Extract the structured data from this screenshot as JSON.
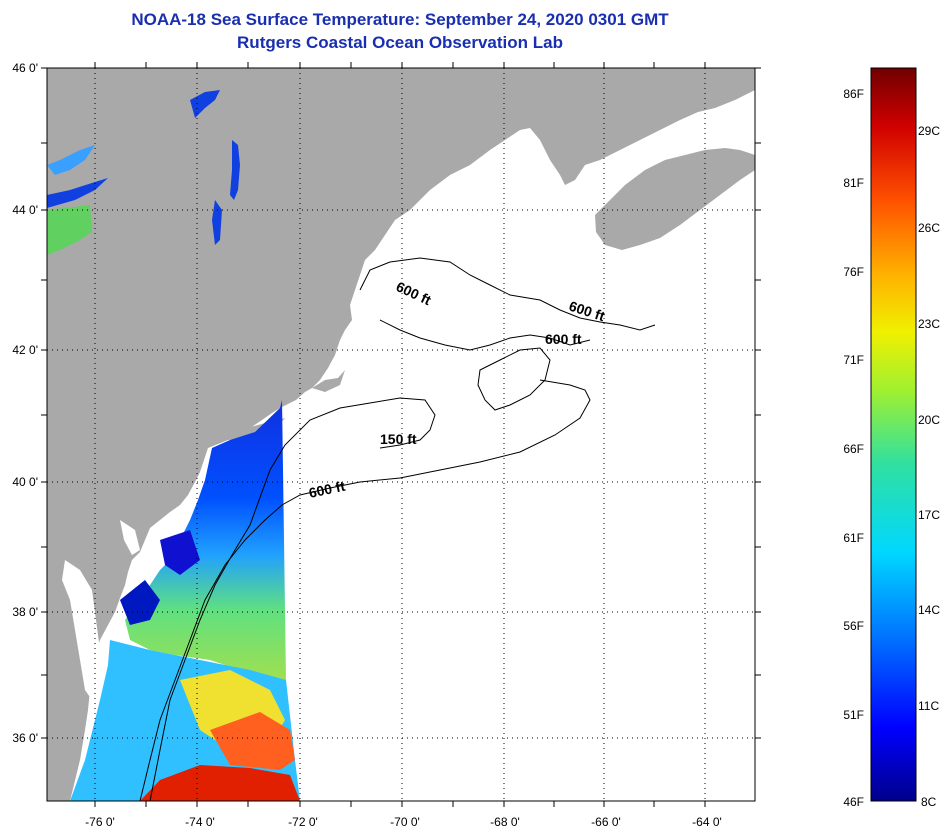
{
  "header": {
    "title": "NOAA-18 Sea Surface Temperature:  September 24, 2020 0301 GMT",
    "subtitle": "Rutgers Coastal Ocean Observation Lab"
  },
  "map": {
    "lat_labels": [
      "46 0'",
      "44 0'",
      "42 0'",
      "40 0'",
      "38 0'",
      "36 0'"
    ],
    "lat_values": [
      46,
      44,
      42,
      40,
      38,
      36
    ],
    "lon_labels": [
      "-76 0'",
      "-74 0'",
      "-72 0'",
      "-70 0'",
      "-68 0'",
      "-66 0'",
      "-64 0'"
    ],
    "lon_values": [
      -76,
      -74,
      -72,
      -70,
      -68,
      -66,
      -64
    ],
    "lat_range": [
      35,
      46
    ],
    "lon_range": [
      -77,
      -62.6
    ],
    "contour_labels": [
      "600 ft",
      "600 ft",
      "600 ft",
      "150 ft",
      "600 ft"
    ],
    "colors": {
      "land": "#a9a9a9",
      "ocean_nodata": "#ffffff",
      "grid": "#000000"
    }
  },
  "colorbar": {
    "f_labels": [
      "86F",
      "81F",
      "76F",
      "71F",
      "66F",
      "61F",
      "56F",
      "51F",
      "46F"
    ],
    "c_labels": [
      "29C",
      "26C",
      "23C",
      "20C",
      "17C",
      "14C",
      "11C",
      "8C"
    ],
    "min_f": 46,
    "max_f": 88,
    "gradient_colors": [
      "#00008b",
      "#0000ff",
      "#0080ff",
      "#00e0ff",
      "#40e080",
      "#c0f020",
      "#ffe000",
      "#ff9000",
      "#ff3000",
      "#b00000",
      "#700000"
    ]
  }
}
